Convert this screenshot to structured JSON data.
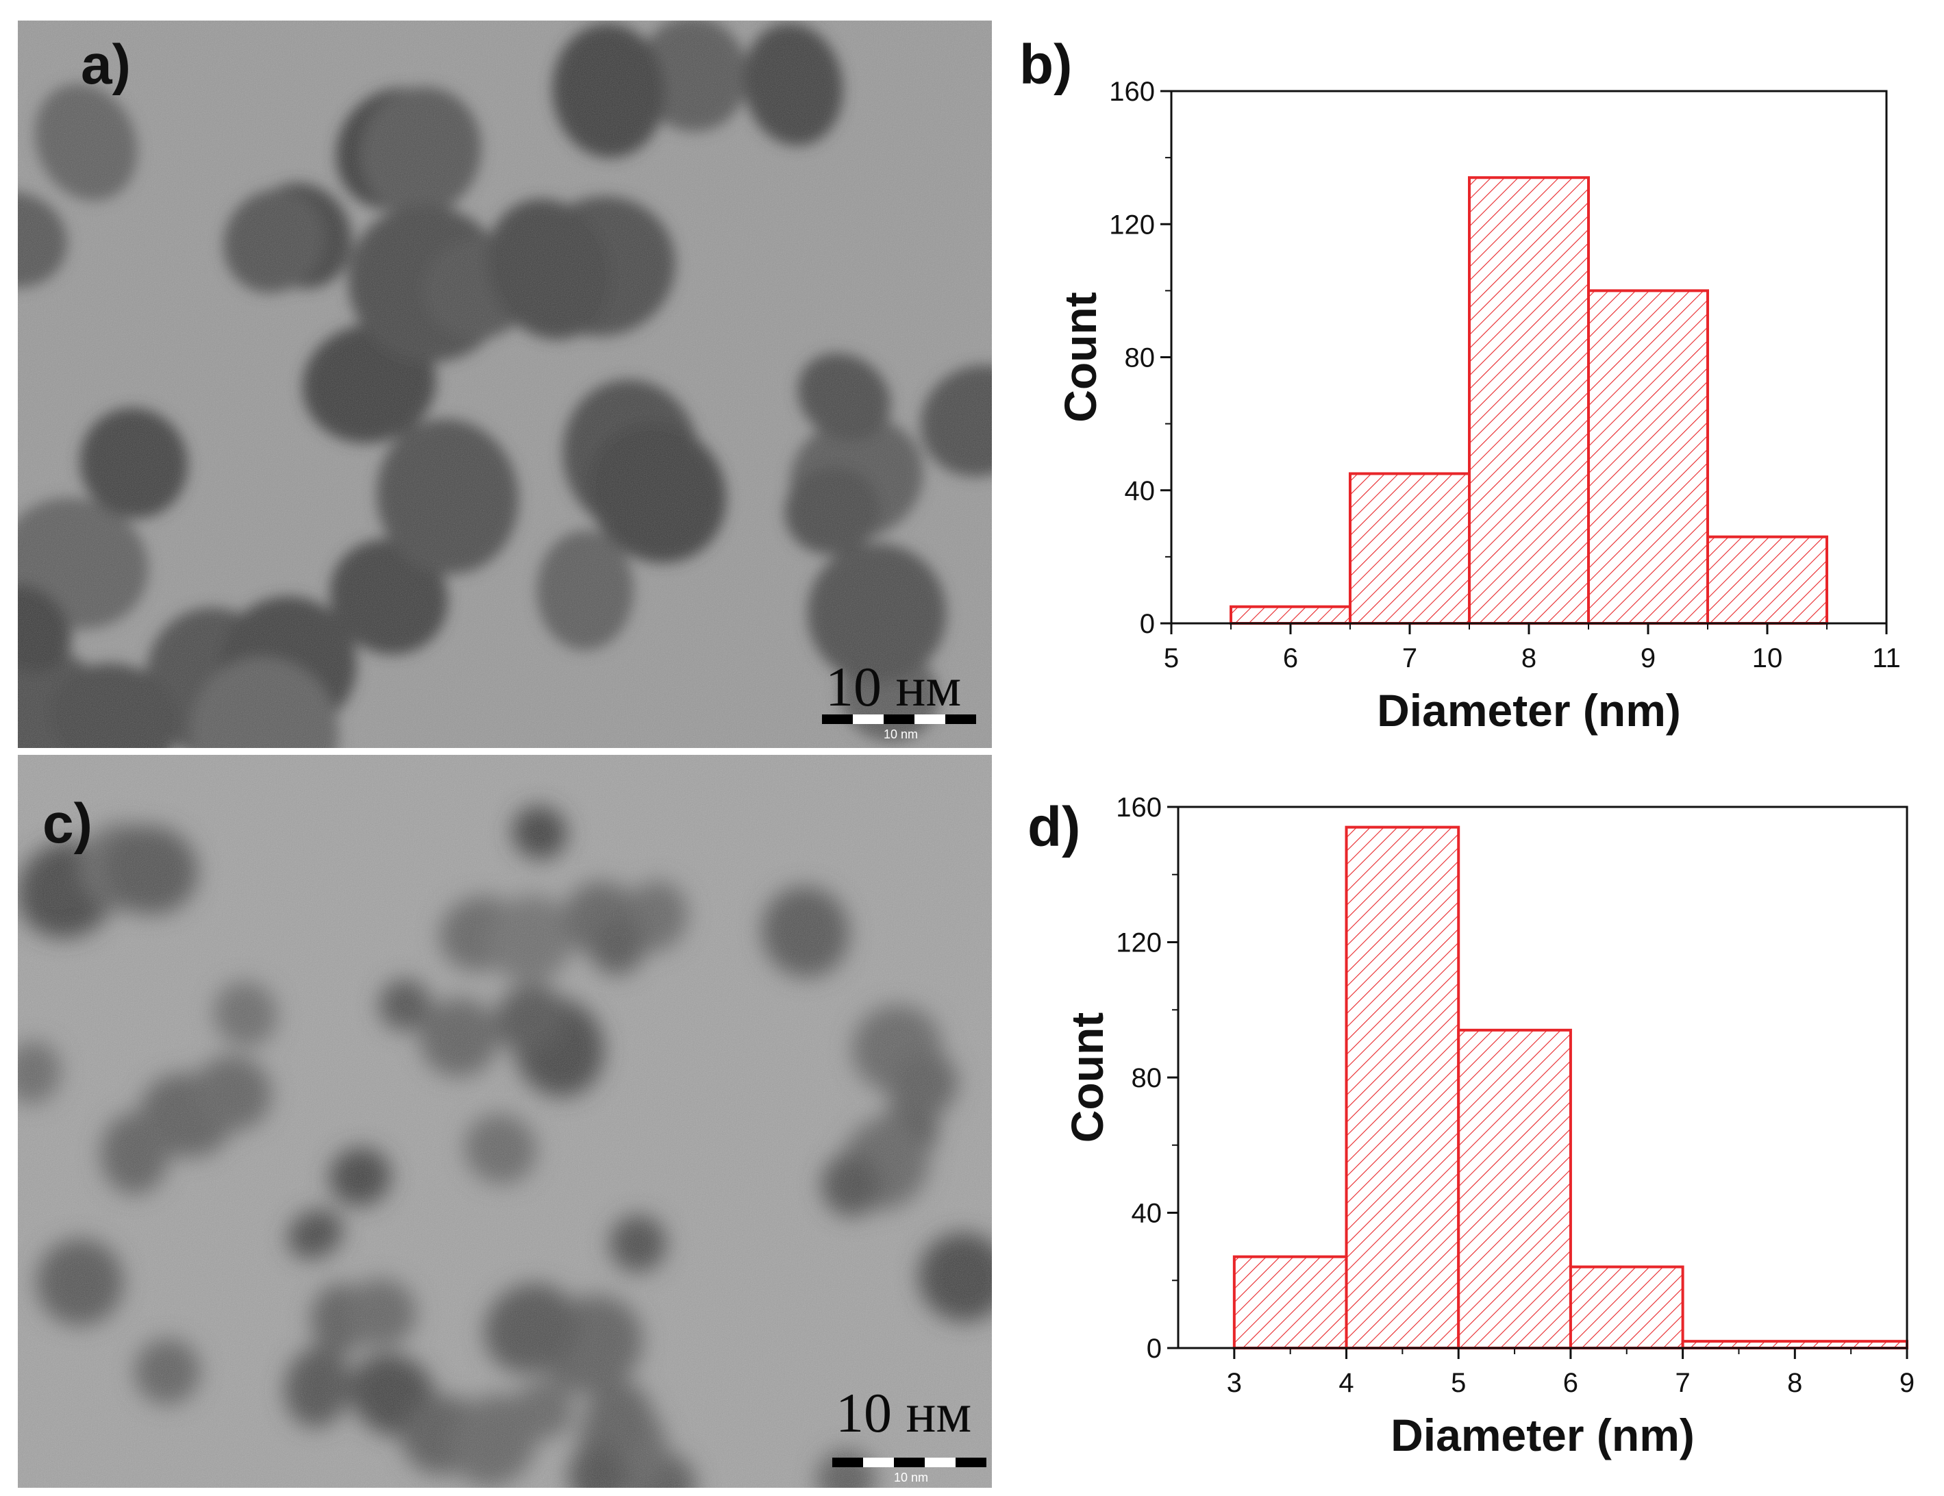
{
  "micrographs": [
    {
      "letter": "a)",
      "scale_bar": {
        "big_label": "10 нм",
        "small_label": "10 nm"
      }
    },
    {
      "letter": "c)",
      "scale_bar": {
        "big_label": "10 нм",
        "small_label": "10 nm"
      }
    }
  ],
  "chart_data": [
    {
      "type": "bar",
      "panel_letter": "b)",
      "bar_style": "histogram, red outline with diagonal hatching",
      "x_edges": [
        [
          5.5,
          6.5
        ],
        [
          6.5,
          7.5
        ],
        [
          7.5,
          8.5
        ],
        [
          8.5,
          9.5
        ],
        [
          9.5,
          10.5
        ]
      ],
      "categories": [
        "6",
        "7",
        "8",
        "9",
        "10"
      ],
      "values": [
        5,
        45,
        134,
        100,
        26
      ],
      "xlabel": "Diameter (nm)",
      "ylabel": "Count",
      "xlim": [
        5,
        11
      ],
      "ylim": [
        0,
        160
      ],
      "xticks": [
        5,
        6,
        7,
        8,
        9,
        10,
        11
      ],
      "yticks": [
        0,
        40,
        80,
        120,
        160
      ],
      "grid": false,
      "color": "#e8262a"
    },
    {
      "type": "bar",
      "panel_letter": "d)",
      "bar_style": "histogram, red outline with diagonal hatching",
      "x_edges": [
        [
          3,
          4
        ],
        [
          4,
          5
        ],
        [
          5,
          6
        ],
        [
          6,
          7
        ],
        [
          7,
          9
        ]
      ],
      "categories": [
        "3-4",
        "4-5",
        "5-6",
        "6-7",
        "7-9"
      ],
      "values": [
        27,
        154,
        94,
        24,
        2
      ],
      "xlabel": "Diameter (nm)",
      "ylabel": "Count",
      "xlim": [
        2.5,
        9
      ],
      "ylim": [
        0,
        160
      ],
      "xticks": [
        3,
        4,
        5,
        6,
        7,
        8,
        9
      ],
      "yticks": [
        0,
        40,
        80,
        120,
        160
      ],
      "grid": false,
      "color": "#e8262a"
    }
  ]
}
